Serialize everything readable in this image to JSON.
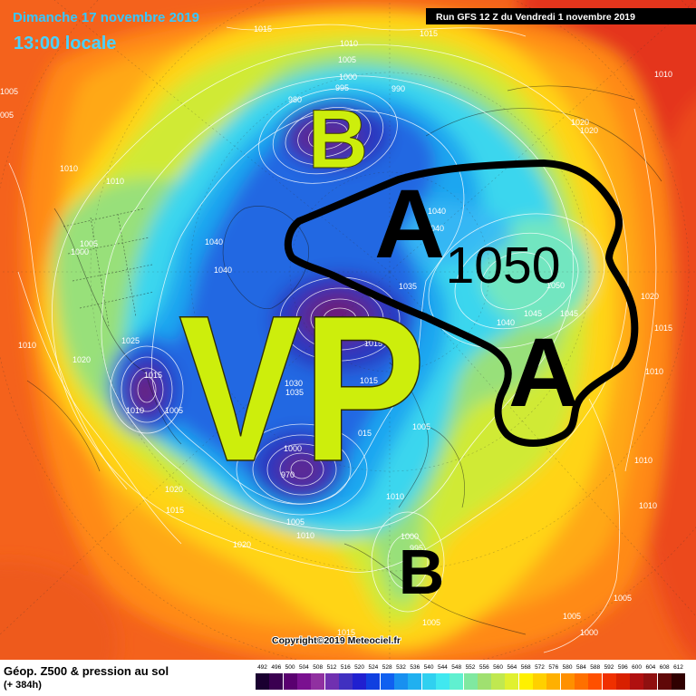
{
  "header": {
    "date": "Dimanche 17 novembre 2019",
    "time": "13:00 locale",
    "run": "Run GFS 12 Z du Vendredi 1 novembre 2019"
  },
  "annotations": {
    "low_north": "B",
    "high_west": "A",
    "high_pressure_value": "1050",
    "polar_vortex": "VP",
    "high_east": "A",
    "low_south": "B"
  },
  "isobar_labels": [
    "1015",
    "1015",
    "1010",
    "1005",
    "1000",
    "995",
    "990",
    "980",
    "1005",
    "005",
    "1010",
    "1020",
    "1020",
    "1010",
    "1010",
    "1005",
    "1000",
    "1040",
    "1040",
    "1040",
    "1040",
    "1035",
    "1050",
    "1045",
    "1045",
    "1040",
    "1020",
    "1015",
    "1010",
    "1025",
    "1020",
    "1010",
    "1015",
    "1010",
    "1005",
    "1015",
    "1015",
    "1030",
    "1035",
    "015",
    "1005",
    "1000",
    "970",
    "1020",
    "1015",
    "1010",
    "1005",
    "1010",
    "1020",
    "1000",
    "995",
    "1005",
    "1015",
    "1010",
    "1010",
    "1005",
    "1005",
    "1000"
  ],
  "copyright": "Copyright©2019 Meteociel.fr",
  "footer": {
    "title": "Géop. Z500 & pression au sol",
    "lead_time": "(+ 384h)"
  },
  "legend": {
    "values": [
      "492",
      "496",
      "500",
      "504",
      "508",
      "512",
      "516",
      "520",
      "524",
      "528",
      "532",
      "536",
      "540",
      "544",
      "548",
      "552",
      "556",
      "560",
      "564",
      "568",
      "572",
      "576",
      "580",
      "584",
      "588",
      "592",
      "596",
      "600",
      "604",
      "608",
      "612"
    ],
    "colors": [
      "#1a0030",
      "#3a0050",
      "#5a0070",
      "#7a1090",
      "#9030a0",
      "#7030b0",
      "#4030c0",
      "#2020d0",
      "#1040e0",
      "#1060f0",
      "#1890f0",
      "#20b0f0",
      "#30d0f0",
      "#40e8f0",
      "#60f0d0",
      "#80e8a0",
      "#a0e070",
      "#c0e850",
      "#e0f030",
      "#fff000",
      "#ffd000",
      "#ffb000",
      "#ff9000",
      "#ff7000",
      "#ff5000",
      "#f03000",
      "#d82000",
      "#b01010",
      "#901010",
      "#600808",
      "#300000"
    ]
  },
  "colors": {
    "annotation_green": "#cdee0c",
    "annotation_black": "#000000",
    "outline": "#000000",
    "date_text": "#36c8ff",
    "time_text": "#48d2ff"
  }
}
